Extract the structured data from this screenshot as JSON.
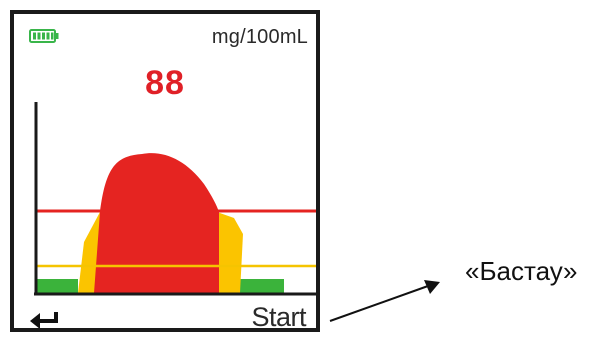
{
  "device": {
    "unit_label": "mg/100mL",
    "reading": "88",
    "start_label": "Start",
    "colors": {
      "reading": "#e02027",
      "peak_fill": "#e52421",
      "threshold_high_line": "#e52421",
      "threshold_low_line": "#f5c400",
      "edge_fill": "#fbc400",
      "baseline_fill": "#3bb33b",
      "battery": "#39b54a"
    },
    "icons": {
      "battery": "battery-full-icon",
      "back": "back-arrow-icon"
    }
  },
  "annotation": {
    "label": "«Бастау»"
  }
}
